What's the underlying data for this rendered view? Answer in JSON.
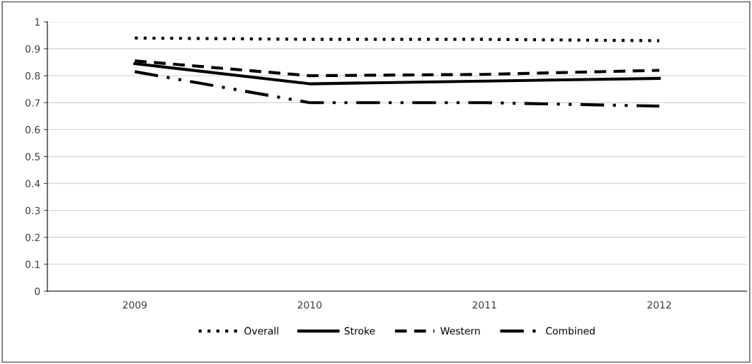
{
  "chart_data": {
    "type": "line",
    "categories": [
      "2009",
      "2010",
      "2011",
      "2012"
    ],
    "series": [
      {
        "name": "Overall",
        "color": "#000000",
        "line_style": "dotted",
        "values": [
          0.94,
          0.935,
          0.935,
          0.93
        ]
      },
      {
        "name": "Stroke",
        "color": "#000000",
        "line_style": "solid",
        "values": [
          0.845,
          0.77,
          0.78,
          0.79
        ]
      },
      {
        "name": "Western",
        "color": "#000000",
        "line_style": "dashed",
        "values": [
          0.855,
          0.8,
          0.805,
          0.82
        ]
      },
      {
        "name": "Combined",
        "color": "#000000",
        "line_style": "dashdotdot",
        "values": [
          0.815,
          0.7,
          0.7,
          0.687
        ]
      }
    ],
    "ylim": [
      0,
      1
    ],
    "yticks": [
      0,
      0.1,
      0.2,
      0.3,
      0.4,
      0.5,
      0.6,
      0.7,
      0.8,
      0.9,
      1
    ],
    "grid": "y",
    "legend": "bottom",
    "marker": "none"
  }
}
